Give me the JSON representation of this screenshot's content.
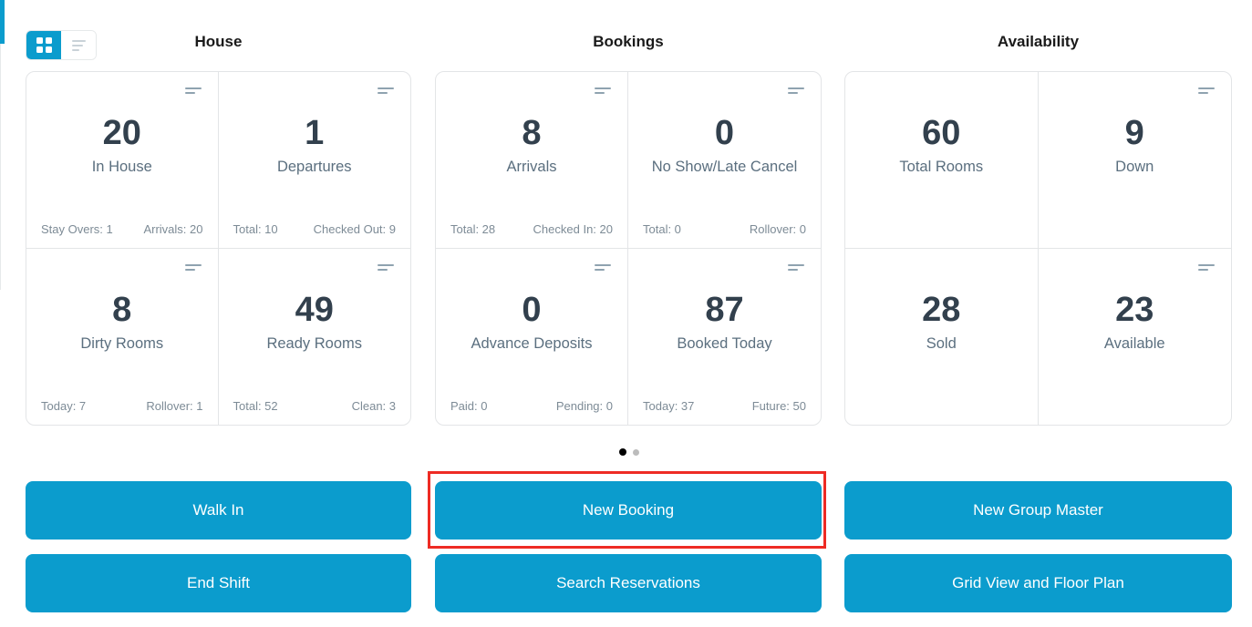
{
  "colors": {
    "accent_blue": "#0b9ccd",
    "highlight_red": "#ee2b24",
    "value_text": "#32404d"
  },
  "view_toggle": {
    "active": "grid"
  },
  "sections": [
    {
      "title": "House",
      "cards": [
        {
          "value": "20",
          "label": "In House",
          "stat_left": "Stay Overs: 1",
          "stat_right": "Arrivals: 20"
        },
        {
          "value": "1",
          "label": "Departures",
          "stat_left": "Total: 10",
          "stat_right": "Checked Out: 9"
        },
        {
          "value": "8",
          "label": "Dirty Rooms",
          "stat_left": "Today: 7",
          "stat_right": "Rollover: 1"
        },
        {
          "value": "49",
          "label": "Ready Rooms",
          "stat_left": "Total: 52",
          "stat_right": "Clean: 3"
        }
      ]
    },
    {
      "title": "Bookings",
      "cards": [
        {
          "value": "8",
          "label": "Arrivals",
          "stat_left": "Total: 28",
          "stat_right": "Checked In: 20"
        },
        {
          "value": "0",
          "label": "No Show/Late Cancel",
          "stat_left": "Total: 0",
          "stat_right": "Rollover: 0"
        },
        {
          "value": "0",
          "label": "Advance Deposits",
          "stat_left": "Paid: 0",
          "stat_right": "Pending: 0"
        },
        {
          "value": "87",
          "label": "Booked Today",
          "stat_left": "Today: 37",
          "stat_right": "Future: 50"
        }
      ]
    },
    {
      "title": "Availability",
      "cards": [
        {
          "value": "60",
          "label": "Total Rooms"
        },
        {
          "value": "9",
          "label": "Down"
        },
        {
          "value": "28",
          "label": "Sold"
        },
        {
          "value": "23",
          "label": "Available"
        }
      ]
    }
  ],
  "pagination": {
    "total_dots": 2,
    "active_dot": 1
  },
  "actions": [
    {
      "label": "Walk In"
    },
    {
      "label": "New Booking",
      "highlighted": true
    },
    {
      "label": "New Group Master"
    },
    {
      "label": "End Shift"
    },
    {
      "label": "Search Reservations"
    },
    {
      "label": "Grid View and Floor Plan"
    }
  ]
}
